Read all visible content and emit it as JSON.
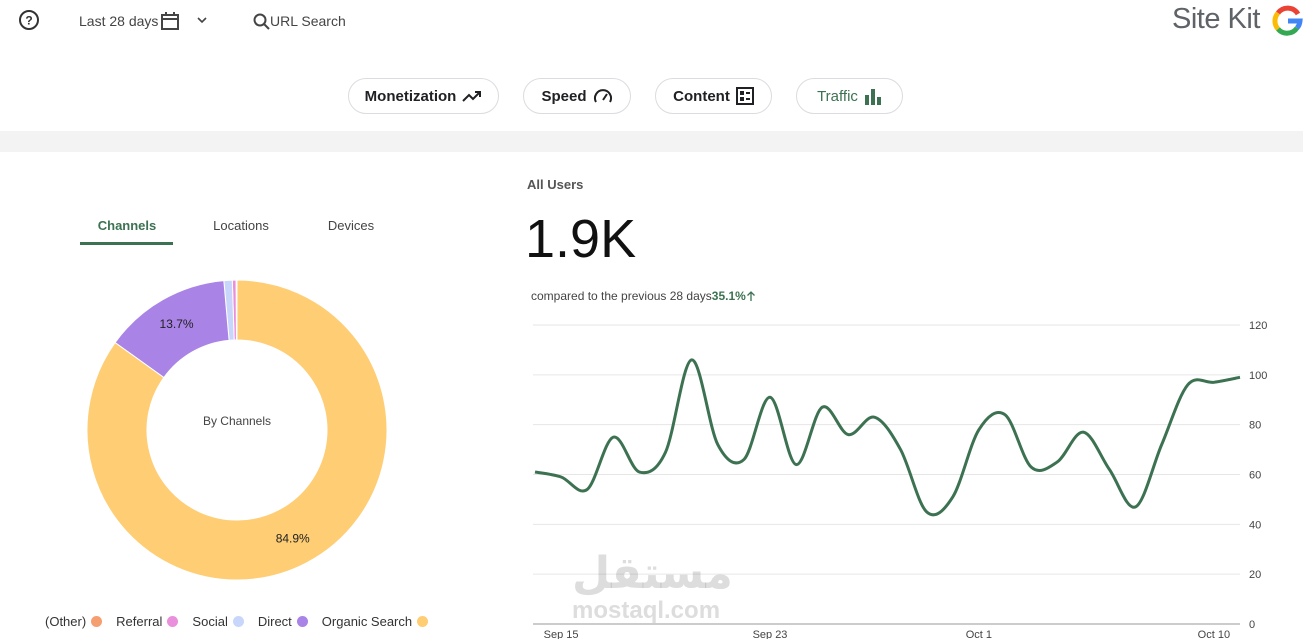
{
  "header": {
    "date_range": "Last 28 days",
    "search": "URL Search",
    "brand": "Site Kit"
  },
  "nav": {
    "items": [
      "Monetization",
      "Speed",
      "Content",
      "Traffic"
    ]
  },
  "tabs": {
    "items": [
      "Channels",
      "Locations",
      "Devices"
    ]
  },
  "watermark": {
    "arabic": "مستقل",
    "latin": "mostaql.com"
  },
  "chart_data": [
    {
      "type": "pie",
      "center_label": "By Channels",
      "categories": [
        "(Other)",
        "Referral",
        "Social",
        "Direct",
        "Organic Search"
      ],
      "values": [
        0.1,
        0.4,
        0.9,
        13.7,
        84.9
      ],
      "value_labels": [
        null,
        null,
        null,
        "13.7%",
        "84.9%"
      ],
      "colors": [
        "#f59e70",
        "#ea8fdc",
        "#c9d6fb",
        "#a983e6",
        "#fecd74"
      ],
      "legend": "bottom"
    },
    {
      "type": "line",
      "title": "All Users",
      "headline": "1.9K",
      "comparison": "compared to the previous 28 days",
      "change": "35.1%",
      "categories": [
        null,
        "Sep 15",
        null,
        null,
        null,
        null,
        null,
        null,
        null,
        "Sep 23",
        null,
        null,
        null,
        null,
        null,
        null,
        null,
        "Oct 1",
        null,
        null,
        null,
        null,
        null,
        null,
        null,
        null,
        "Oct 10",
        null
      ],
      "series": [
        {
          "color": "#3c7251",
          "values": [
            61,
            59,
            54,
            75,
            61,
            69,
            106,
            72,
            66,
            91,
            64,
            87,
            76,
            83,
            70,
            45,
            51,
            78,
            84,
            63,
            65,
            77,
            62,
            47,
            72,
            96,
            97,
            99
          ]
        }
      ],
      "ylim": [
        0,
        120
      ],
      "yticks": [
        0,
        20,
        40,
        60,
        80,
        100,
        120
      ],
      "grid": true
    }
  ]
}
